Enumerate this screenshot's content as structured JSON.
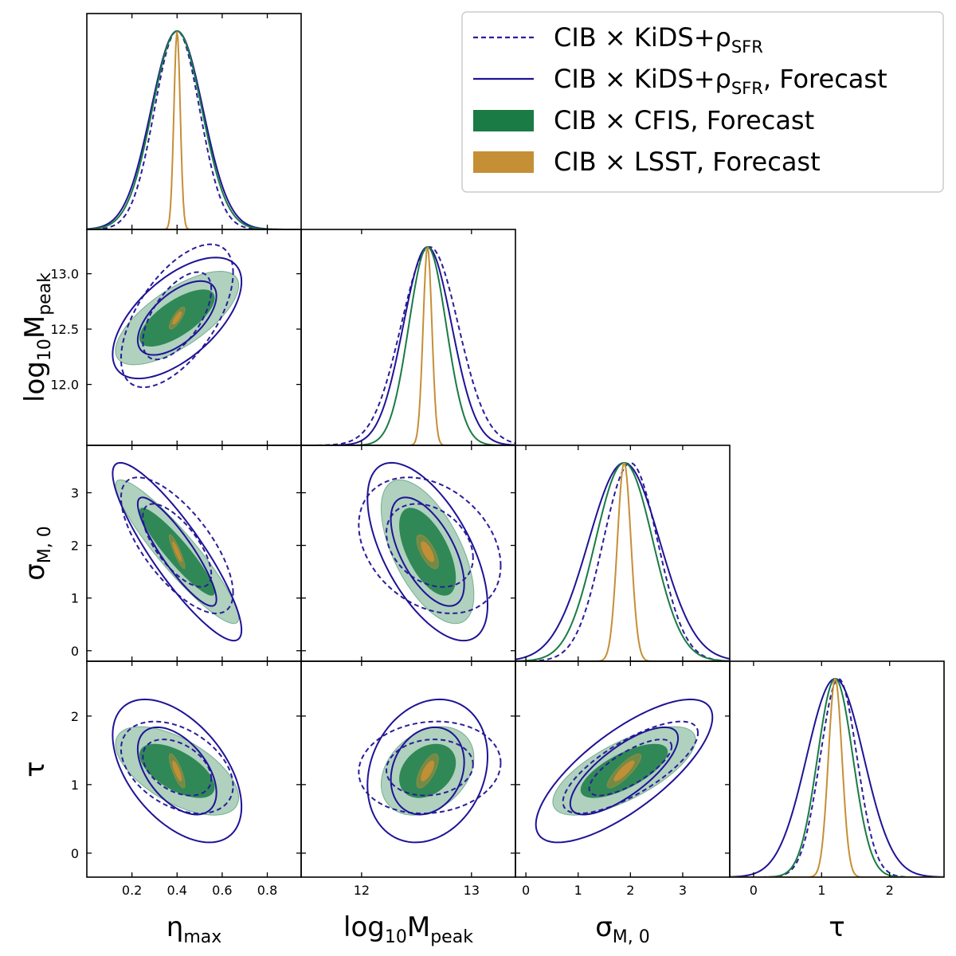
{
  "chart_data": {
    "type": "corner",
    "title": "",
    "parameters": [
      {
        "id": "eta",
        "label": "η",
        "label_sub": "max",
        "range": [
          0.0,
          0.95
        ],
        "ticks": [
          0.2,
          0.4,
          0.6,
          0.8
        ],
        "tick_labels": [
          "0.2",
          "0.4",
          "0.6",
          "0.8"
        ]
      },
      {
        "id": "mpeak",
        "label": "log",
        "label_sub": "10",
        "label_rest": "M",
        "label_rest_sub": "peak",
        "range": [
          11.45,
          13.4
        ],
        "ticks": [
          12.0,
          13.0
        ],
        "tick_labels": [
          "12",
          "13"
        ],
        "y_ticks": [
          12.0,
          12.5,
          13.0
        ],
        "y_tick_labels": [
          "12.0",
          "12.5",
          "13.0"
        ]
      },
      {
        "id": "sigma",
        "label": "σ",
        "label_sub": "M, 0",
        "range": [
          -0.2,
          3.9
        ],
        "ticks": [
          0,
          1,
          2,
          3
        ],
        "tick_labels": [
          "0",
          "1",
          "2",
          "3"
        ]
      },
      {
        "id": "tau",
        "label": "τ",
        "label_sub": "",
        "range": [
          -0.35,
          2.8
        ],
        "ticks": [
          0,
          1,
          2
        ],
        "tick_labels": [
          "0",
          "1",
          "2"
        ]
      }
    ],
    "series": [
      {
        "name": "CIB × KiDS+ρ",
        "name_sub": "SFR",
        "name_suffix": "",
        "style": "dashed-line",
        "color": "#2a1d9a",
        "means": [
          0.4,
          12.62,
          2.0,
          1.25
        ],
        "sigmas": [
          0.1,
          0.26,
          0.52,
          0.27
        ],
        "corr": {
          "eta-mpeak": 0.6,
          "eta-sigma": -0.7,
          "eta-tau": -0.4,
          "mpeak-sigma": -0.3,
          "mpeak-tau": 0.1,
          "sigma-tau": 0.75
        }
      },
      {
        "name": "CIB × KiDS+ρ",
        "name_sub": "SFR",
        "name_suffix": ", Forecast",
        "style": "solid-line",
        "color": "#1f1396",
        "means": [
          0.4,
          12.6,
          1.88,
          1.2
        ],
        "sigmas": [
          0.115,
          0.22,
          0.68,
          0.42
        ],
        "corr": {
          "eta-mpeak": 0.6,
          "eta-sigma": -0.88,
          "eta-tau": -0.5,
          "mpeak-sigma": -0.6,
          "mpeak-tau": 0.2,
          "sigma-tau": 0.75
        }
      },
      {
        "name": "CIB × CFIS",
        "name_sub": "",
        "name_suffix": ", Forecast",
        "style": "filled",
        "color": "#1a7b45",
        "means": [
          0.4,
          12.6,
          1.88,
          1.2
        ],
        "sigmas": [
          0.11,
          0.17,
          0.55,
          0.26
        ],
        "corr": {
          "eta-mpeak": 0.7,
          "eta-sigma": -0.92,
          "eta-tau": -0.6,
          "mpeak-sigma": -0.6,
          "mpeak-tau": 0.3,
          "sigma-tau": 0.7
        }
      },
      {
        "name": "CIB × LSST",
        "name_sub": "",
        "name_suffix": ", Forecast",
        "style": "filled",
        "color": "#c58f35",
        "means": [
          0.4,
          12.6,
          1.88,
          1.2
        ],
        "sigmas": [
          0.014,
          0.04,
          0.13,
          0.1
        ],
        "corr": {
          "eta-mpeak": 0.8,
          "eta-sigma": -0.9,
          "eta-tau": -0.8,
          "mpeak-sigma": -0.7,
          "mpeak-tau": 0.7,
          "sigma-tau": 0.85
        }
      }
    ],
    "contour_levels": [
      "68%",
      "95%"
    ],
    "legend_position": "top-right"
  }
}
